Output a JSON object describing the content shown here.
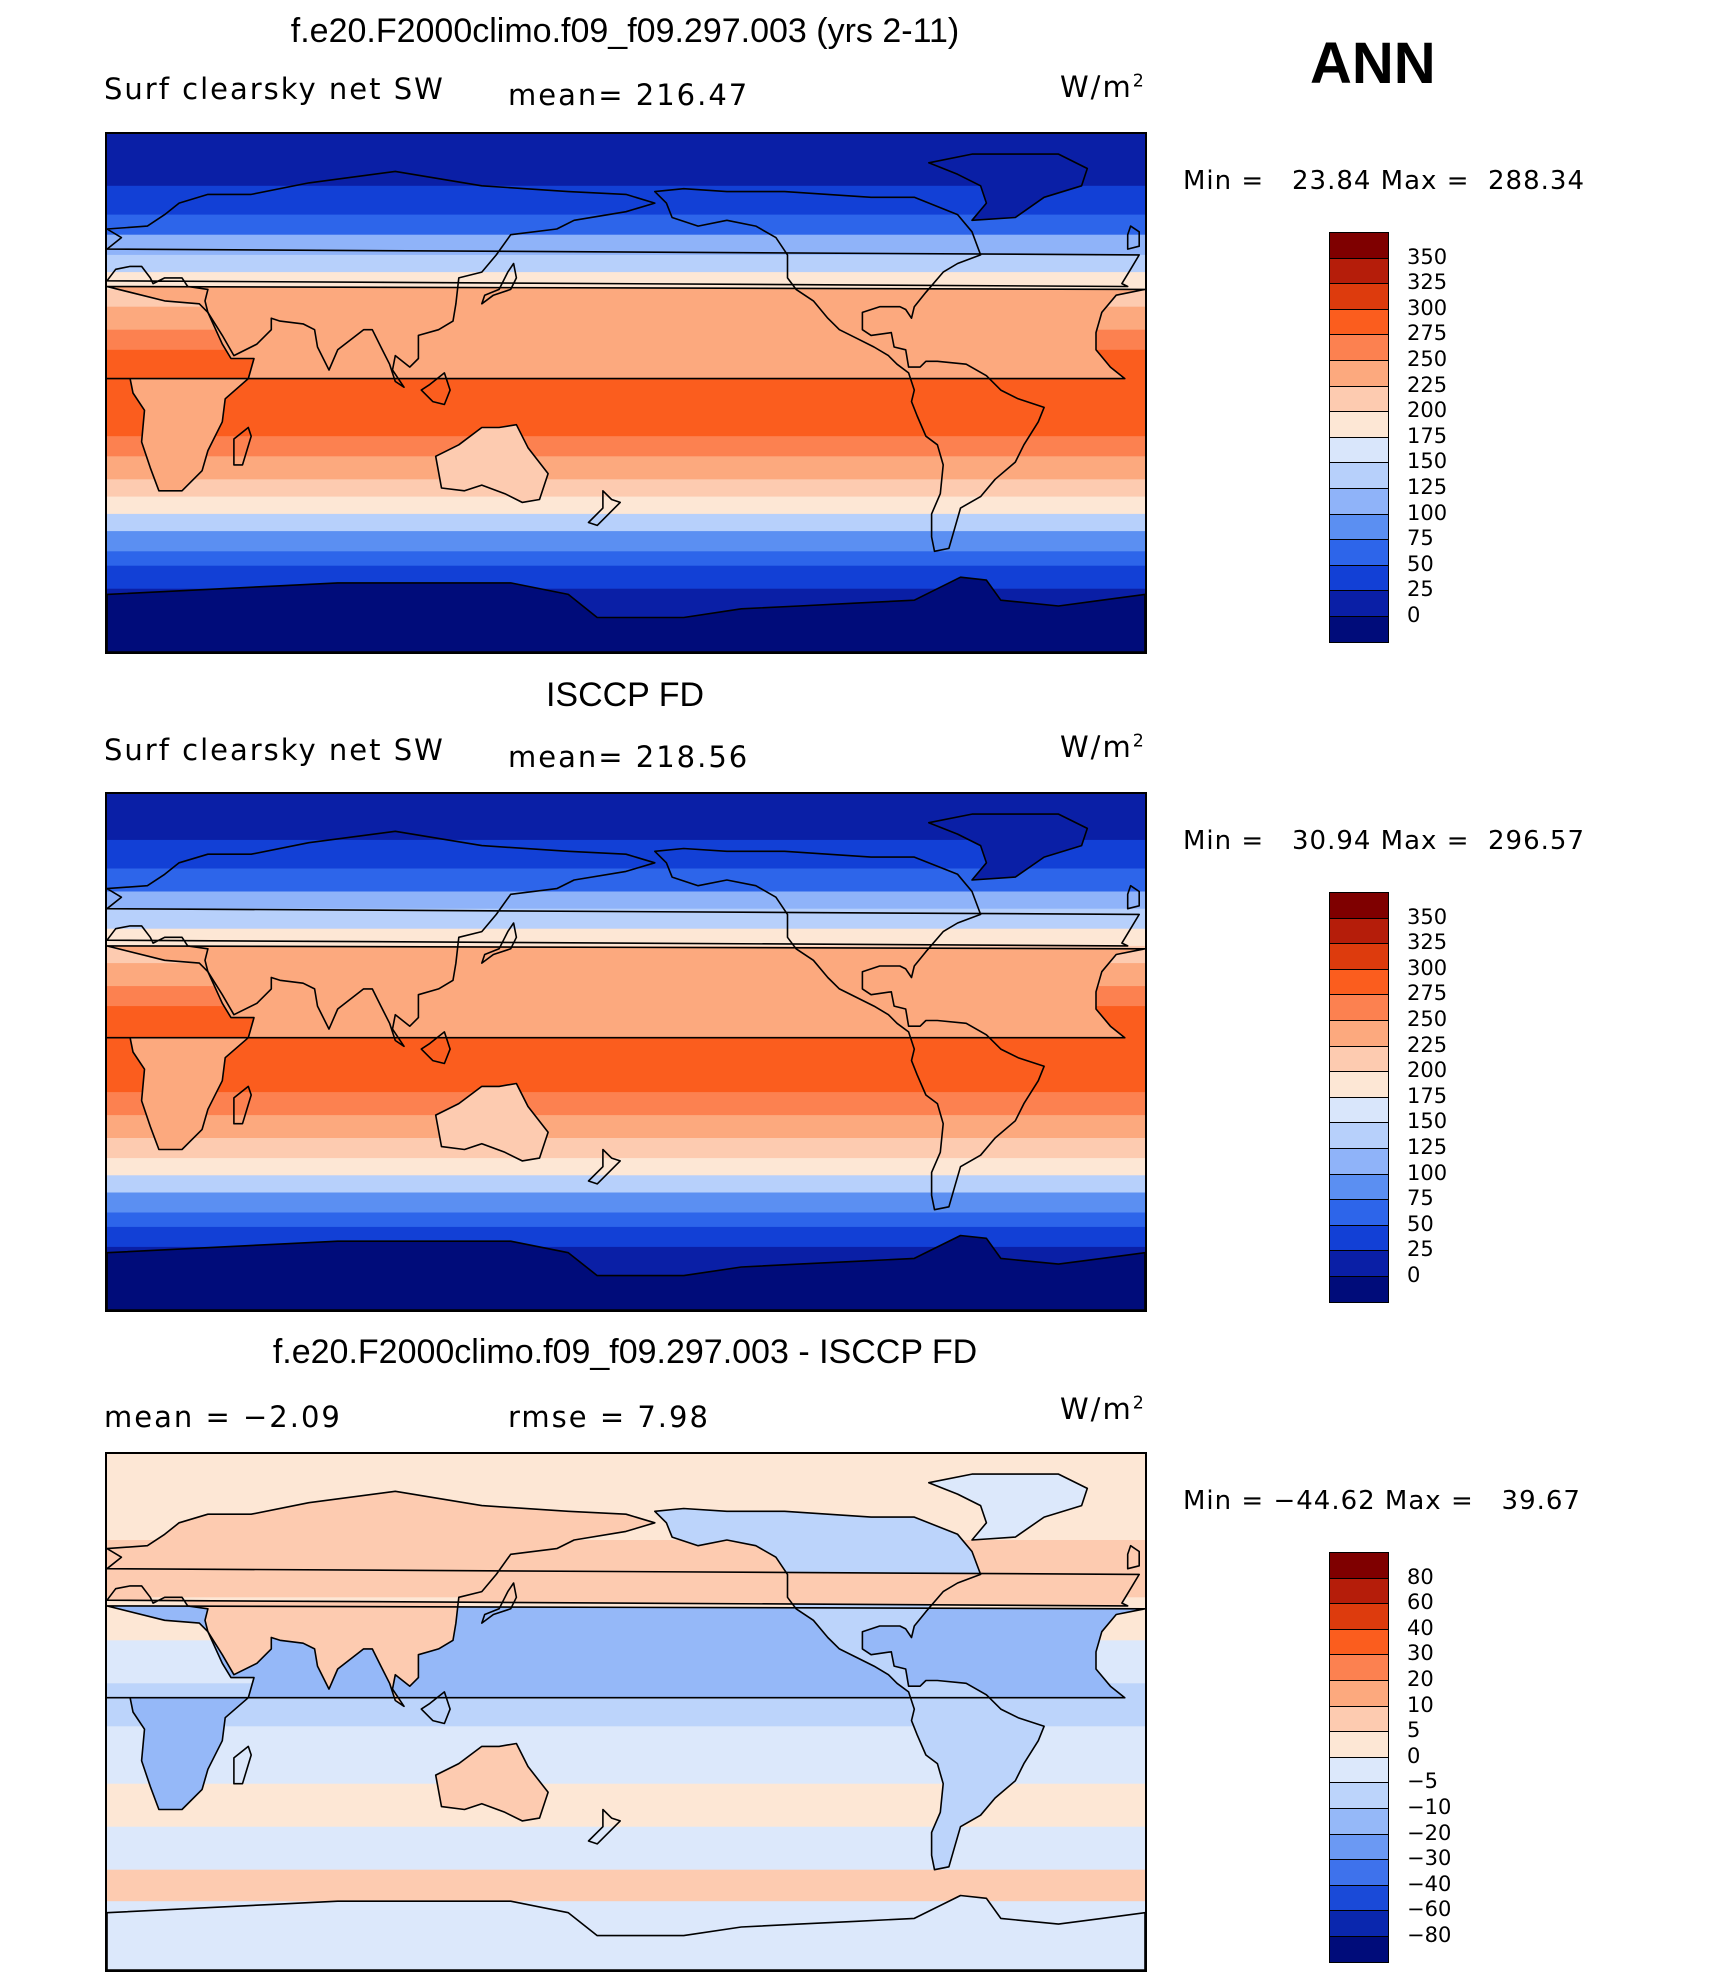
{
  "season": "ANN",
  "units_base": "W/m",
  "units_exp": "2",
  "panels": [
    {
      "id": "model",
      "title": "f.e20.F2000climo.f09_f09.297.003 (yrs 2-11)",
      "left_label": "Surf clearsky net SW",
      "center_label": "mean= 216.47",
      "minmax": "Min =   23.84 Max =  288.34",
      "colorbar": [
        "350",
        "325",
        "300",
        "275",
        "250",
        "225",
        "200",
        "175",
        "150",
        "125",
        "100",
        "75",
        "50",
        "25",
        "0"
      ]
    },
    {
      "id": "obs",
      "title": "ISCCP FD",
      "left_label": "Surf clearsky net SW",
      "center_label": "mean= 218.56",
      "minmax": "Min =   30.94 Max =  296.57",
      "colorbar": [
        "350",
        "325",
        "300",
        "275",
        "250",
        "225",
        "200",
        "175",
        "150",
        "125",
        "100",
        "75",
        "50",
        "25",
        "0"
      ]
    },
    {
      "id": "diff",
      "title": "f.e20.F2000climo.f09_f09.297.003 - ISCCP FD",
      "left_label": "mean =    −2.09",
      "center_label": "rmse =     7.98",
      "minmax": "Min = −44.62 Max =   39.67",
      "colorbar": [
        "80",
        "60",
        "40",
        "30",
        "20",
        "10",
        "5",
        "0",
        "−5",
        "−10",
        "−20",
        "−30",
        "−40",
        "−60",
        "−80"
      ]
    }
  ],
  "colors": {
    "abs_scale": [
      "#7f0000",
      "#b51d0a",
      "#dd3b0d",
      "#fb5d1e",
      "#fc8150",
      "#fca97e",
      "#fdcbb0",
      "#fde7d5",
      "#d9e6fb",
      "#b7d0fb",
      "#8fb3f9",
      "#5b8ff2",
      "#2d65ea",
      "#1240d6",
      "#0a1fa6",
      "#000c7a"
    ],
    "diff_scale": [
      "#7f0000",
      "#b51d0a",
      "#dd3b0d",
      "#fb5d1e",
      "#fc8150",
      "#fca97e",
      "#fdcbb0",
      "#fde7d5",
      "#dce8fb",
      "#bcd4fb",
      "#95b8f8",
      "#6b99f3",
      "#3e72ec",
      "#1a4ad8",
      "#0a27ae",
      "#000c7a"
    ]
  },
  "chart_data": [
    {
      "type": "heatmap",
      "title": "f.e20.F2000climo.f09_f09.297.003 (yrs 2-11)",
      "variable": "Surf clearsky net SW",
      "units": "W/m2",
      "mean": 216.47,
      "min": 23.84,
      "max": 288.34,
      "contour_levels": [
        0,
        25,
        50,
        75,
        100,
        125,
        150,
        175,
        200,
        225,
        250,
        275,
        300,
        325,
        350
      ]
    },
    {
      "type": "heatmap",
      "title": "ISCCP FD",
      "variable": "Surf clearsky net SW",
      "units": "W/m2",
      "mean": 218.56,
      "min": 30.94,
      "max": 296.57,
      "contour_levels": [
        0,
        25,
        50,
        75,
        100,
        125,
        150,
        175,
        200,
        225,
        250,
        275,
        300,
        325,
        350
      ]
    },
    {
      "type": "heatmap",
      "title": "f.e20.F2000climo.f09_f09.297.003 - ISCCP FD",
      "units": "W/m2",
      "mean": -2.09,
      "rmse": 7.98,
      "min": -44.62,
      "max": 39.67,
      "contour_levels": [
        -80,
        -60,
        -40,
        -30,
        -20,
        -10,
        -5,
        0,
        5,
        10,
        20,
        30,
        40,
        60,
        80
      ]
    }
  ]
}
